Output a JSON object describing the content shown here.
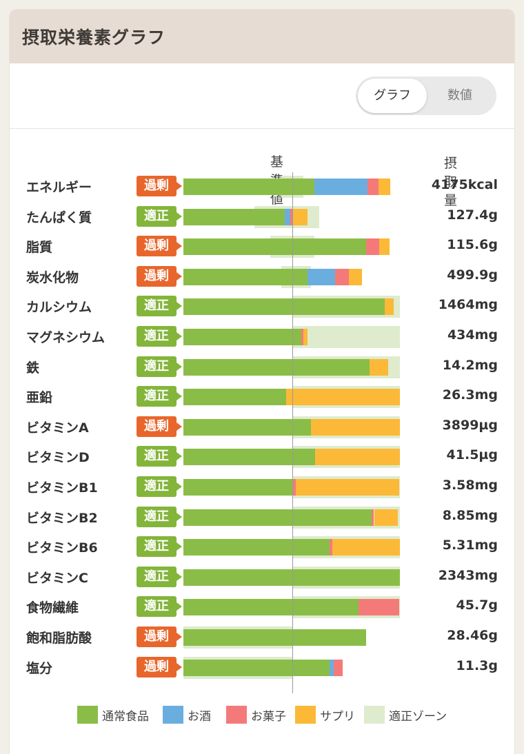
{
  "card": {
    "title": "摂取栄養素グラフ"
  },
  "toggle": {
    "graph_label": "グラフ",
    "value_label": "数値"
  },
  "table": {
    "ref_header": "基準値",
    "intake_header": "摂取量"
  },
  "colors": {
    "food": "#8abd47",
    "alcohol": "#6aaee0",
    "snack": "#f47a7a",
    "supplement": "#fbb937",
    "zone": "#deebcd",
    "excess": "#e8662c",
    "ok": "#83b53a"
  },
  "legend": [
    {
      "key": "food",
      "label": "通常食品"
    },
    {
      "key": "alcohol",
      "label": "お酒"
    },
    {
      "key": "snack",
      "label": "お菓子"
    },
    {
      "key": "supplement",
      "label": "サプリ"
    },
    {
      "key": "zone",
      "label": "適正ゾーン"
    }
  ],
  "rows": [
    {
      "name": "エネルギー",
      "status": "過剰",
      "status_type": "excess",
      "value": "4175kcal",
      "zone": [
        0.9,
        1.1
      ],
      "segments": [
        {
          "t": "food",
          "v": 1.2
        },
        {
          "t": "alcohol",
          "v": 0.49
        },
        {
          "t": "snack",
          "v": 0.1
        },
        {
          "t": "supplement",
          "v": 0.11
        }
      ]
    },
    {
      "name": "たんぱく質",
      "status": "適正",
      "status_type": "ok",
      "value": "127.4g",
      "zone": [
        0.65,
        1.25
      ],
      "segments": [
        {
          "t": "food",
          "v": 0.93
        },
        {
          "t": "alcohol",
          "v": 0.05
        },
        {
          "t": "snack",
          "v": 0.02
        },
        {
          "t": "supplement",
          "v": 0.14
        }
      ]
    },
    {
      "name": "脂質",
      "status": "過剰",
      "status_type": "excess",
      "value": "115.6g",
      "zone": [
        0.8,
        1.2
      ],
      "segments": [
        {
          "t": "food",
          "v": 1.68
        },
        {
          "t": "snack",
          "v": 0.12
        },
        {
          "t": "supplement",
          "v": 0.09
        }
      ]
    },
    {
      "name": "炭水化物",
      "status": "過剰",
      "status_type": "excess",
      "value": "499.9g",
      "zone": [
        0.9,
        1.17
      ],
      "segments": [
        {
          "t": "food",
          "v": 1.14
        },
        {
          "t": "alcohol",
          "v": 0.25
        },
        {
          "t": "snack",
          "v": 0.13
        },
        {
          "t": "supplement",
          "v": 0.12
        }
      ]
    },
    {
      "name": "カルシウム",
      "status": "適正",
      "status_type": "ok",
      "value": "1464mg",
      "zone": [
        1.0,
        1.99
      ],
      "segments": [
        {
          "t": "food",
          "v": 1.85
        },
        {
          "t": "supplement",
          "v": 0.08
        }
      ]
    },
    {
      "name": "マグネシウム",
      "status": "適正",
      "status_type": "ok",
      "value": "434mg",
      "zone": [
        1.0,
        1.99
      ],
      "segments": [
        {
          "t": "food",
          "v": 1.08
        },
        {
          "t": "snack",
          "v": 0.02
        },
        {
          "t": "supplement",
          "v": 0.04
        }
      ]
    },
    {
      "name": "鉄",
      "status": "適正",
      "status_type": "ok",
      "value": "14.2mg",
      "zone": [
        1.0,
        1.99
      ],
      "segments": [
        {
          "t": "food",
          "v": 1.71
        },
        {
          "t": "supplement",
          "v": 0.17
        }
      ]
    },
    {
      "name": "亜鉛",
      "status": "適正",
      "status_type": "ok",
      "value": "26.3mg",
      "zone": [
        1.0,
        1.99
      ],
      "segments": [
        {
          "t": "food",
          "v": 0.94
        },
        {
          "t": "supplement",
          "v": 1.05
        }
      ]
    },
    {
      "name": "ビタミンA",
      "status": "過剰",
      "status_type": "excess",
      "value": "3899µg",
      "zone": [
        1.0,
        1.99
      ],
      "segments": [
        {
          "t": "food",
          "v": 1.17
        },
        {
          "t": "supplement",
          "v": 0.82
        }
      ]
    },
    {
      "name": "ビタミンD",
      "status": "適正",
      "status_type": "ok",
      "value": "41.5µg",
      "zone": [
        1.0,
        1.99
      ],
      "segments": [
        {
          "t": "food",
          "v": 1.21
        },
        {
          "t": "supplement",
          "v": 0.78
        }
      ]
    },
    {
      "name": "ビタミンB1",
      "status": "適正",
      "status_type": "ok",
      "value": "3.58mg",
      "zone": [
        1.0,
        1.99
      ],
      "segments": [
        {
          "t": "food",
          "v": 1.0
        },
        {
          "t": "snack",
          "v": 0.03
        },
        {
          "t": "supplement",
          "v": 0.95
        }
      ]
    },
    {
      "name": "ビタミンB2",
      "status": "適正",
      "status_type": "ok",
      "value": "8.85mg",
      "zone": [
        1.0,
        1.99
      ],
      "segments": [
        {
          "t": "food",
          "v": 1.73
        },
        {
          "t": "snack",
          "v": 0.02
        },
        {
          "t": "supplement",
          "v": 0.22
        }
      ]
    },
    {
      "name": "ビタミンB6",
      "status": "適正",
      "status_type": "ok",
      "value": "5.31mg",
      "zone": [
        1.0,
        1.99
      ],
      "segments": [
        {
          "t": "food",
          "v": 1.34
        },
        {
          "t": "snack",
          "v": 0.03
        },
        {
          "t": "supplement",
          "v": 0.62
        }
      ]
    },
    {
      "name": "ビタミンC",
      "status": "適正",
      "status_type": "ok",
      "value": "2343mg",
      "zone": [
        1.0,
        1.99
      ],
      "segments": [
        {
          "t": "food",
          "v": 1.99
        }
      ]
    },
    {
      "name": "食物繊維",
      "status": "適正",
      "status_type": "ok",
      "value": "45.7g",
      "zone": [
        1.0,
        1.99
      ],
      "segments": [
        {
          "t": "food",
          "v": 1.61
        },
        {
          "t": "snack",
          "v": 0.37
        }
      ]
    },
    {
      "name": "飽和脂肪酸",
      "status": "過剰",
      "status_type": "excess",
      "value": "28.46g",
      "zone": [
        0.0,
        1.0
      ],
      "segments": [
        {
          "t": "food",
          "v": 1.68
        }
      ]
    },
    {
      "name": "塩分",
      "status": "過剰",
      "status_type": "excess",
      "value": "11.3g",
      "zone": [
        0.0,
        1.0
      ],
      "segments": [
        {
          "t": "food",
          "v": 1.34
        },
        {
          "t": "alcohol",
          "v": 0.04
        },
        {
          "t": "snack",
          "v": 0.08
        }
      ]
    }
  ]
}
